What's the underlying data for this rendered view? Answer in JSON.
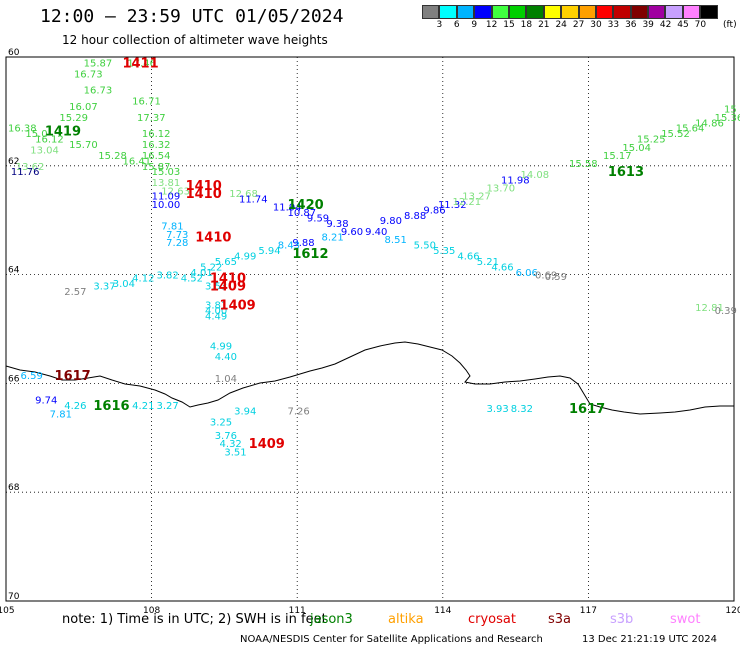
{
  "header": {
    "title": "12:00 — 23:59 UTC 01/05/2024",
    "subtitle": "12 hour collection of altimeter wave heights"
  },
  "legend": {
    "unit": "(ft)",
    "labels": [
      "3",
      "6",
      "9",
      "12",
      "15",
      "18",
      "21",
      "24",
      "27",
      "30",
      "33",
      "36",
      "39",
      "42",
      "45",
      "70"
    ],
    "colors": [
      "#808080",
      "#00ffff",
      "#00b4ff",
      "#0000ff",
      "#40ff40",
      "#00d000",
      "#008000",
      "#ffff00",
      "#ffd000",
      "#ffa000",
      "#ff0000",
      "#c00000",
      "#800000",
      "#a000a0",
      "#c8a0ff",
      "#ff80ff",
      "#000000"
    ]
  },
  "map": {
    "lat_labels": [
      "60",
      "62",
      "64",
      "66",
      "68",
      "70"
    ],
    "lon_labels": [
      "105",
      "108",
      "111",
      "114",
      "117",
      "120"
    ],
    "observations": [
      {
        "t": "15.87",
        "lon": 106.6,
        "lat": 60.1,
        "c": "#40d040"
      },
      {
        "t": "16.73",
        "lon": 106.4,
        "lat": 60.3,
        "c": "#40d040"
      },
      {
        "t": "16.73",
        "lon": 106.6,
        "lat": 60.6,
        "c": "#40d040"
      },
      {
        "t": "16.07",
        "lon": 106.3,
        "lat": 60.9,
        "c": "#40d040"
      },
      {
        "t": "15.29",
        "lon": 106.1,
        "lat": 61.1,
        "c": "#40d040"
      },
      {
        "t": "16.38",
        "lon": 105.0,
        "lat": 61.3,
        "c": "#40d040"
      },
      {
        "t": "15.0",
        "lon": 105.4,
        "lat": 61.4,
        "c": "#40d040"
      },
      {
        "t": "16.12",
        "lon": 105.6,
        "lat": 61.5,
        "c": "#40d040"
      },
      {
        "t": "15.70",
        "lon": 106.3,
        "lat": 61.6,
        "c": "#40d040"
      },
      {
        "t": "13.04",
        "lon": 105.5,
        "lat": 61.7,
        "c": "#80e080"
      },
      {
        "t": "13.62",
        "lon": 105.2,
        "lat": 62.0,
        "c": "#80e080"
      },
      {
        "t": "15.28",
        "lon": 106.9,
        "lat": 61.8,
        "c": "#40d040"
      },
      {
        "t": "16.41",
        "lon": 107.4,
        "lat": 61.9,
        "c": "#40d040"
      },
      {
        "t": "17.46",
        "lon": 107.5,
        "lat": 60.1,
        "c": "#40d040"
      },
      {
        "t": "16.71",
        "lon": 107.6,
        "lat": 60.8,
        "c": "#40d040"
      },
      {
        "t": "17.37",
        "lon": 107.7,
        "lat": 61.1,
        "c": "#40d040"
      },
      {
        "t": "16.12",
        "lon": 107.8,
        "lat": 61.4,
        "c": "#40d040"
      },
      {
        "t": "16.32",
        "lon": 107.8,
        "lat": 61.6,
        "c": "#40d040"
      },
      {
        "t": "16.54",
        "lon": 107.8,
        "lat": 61.8,
        "c": "#40d040"
      },
      {
        "t": "15.87",
        "lon": 107.8,
        "lat": 62.0,
        "c": "#40d040"
      },
      {
        "t": "15.03",
        "lon": 108.0,
        "lat": 62.1,
        "c": "#40d040"
      },
      {
        "t": "13.81",
        "lon": 108.0,
        "lat": 62.3,
        "c": "#80e080"
      },
      {
        "t": "12.63",
        "lon": 108.2,
        "lat": 62.45,
        "c": "#80e080"
      },
      {
        "t": "12.68",
        "lon": 109.6,
        "lat": 62.5,
        "c": "#80e080"
      },
      {
        "t": "11.76",
        "lon": 105.1,
        "lat": 62.1,
        "c": "#000080"
      },
      {
        "t": "11.09",
        "lon": 108.0,
        "lat": 62.55,
        "c": "#0000ff"
      },
      {
        "t": "10.00",
        "lon": 108.0,
        "lat": 62.7,
        "c": "#0000ff"
      },
      {
        "t": "11.74",
        "lon": 109.8,
        "lat": 62.6,
        "c": "#0000ff"
      },
      {
        "t": "11.94",
        "lon": 110.5,
        "lat": 62.75,
        "c": "#0000ff"
      },
      {
        "t": "10.87",
        "lon": 110.8,
        "lat": 62.85,
        "c": "#0000ff"
      },
      {
        "t": "9.59",
        "lon": 111.2,
        "lat": 62.95,
        "c": "#0000ff"
      },
      {
        "t": "9.38",
        "lon": 111.6,
        "lat": 63.05,
        "c": "#0000ff"
      },
      {
        "t": "9.60",
        "lon": 111.9,
        "lat": 63.2,
        "c": "#0000ff"
      },
      {
        "t": "9.40",
        "lon": 112.4,
        "lat": 63.2,
        "c": "#0000ff"
      },
      {
        "t": "9.80",
        "lon": 112.7,
        "lat": 63.0,
        "c": "#0000ff"
      },
      {
        "t": "8.88",
        "lon": 113.2,
        "lat": 62.9,
        "c": "#0000ff"
      },
      {
        "t": "9.86",
        "lon": 113.6,
        "lat": 62.8,
        "c": "#0000ff"
      },
      {
        "t": "11.32",
        "lon": 113.9,
        "lat": 62.7,
        "c": "#0000ff"
      },
      {
        "t": "11.98",
        "lon": 115.2,
        "lat": 62.25,
        "c": "#0000ff"
      },
      {
        "t": "9.88",
        "lon": 110.9,
        "lat": 63.4,
        "c": "#0000ff"
      },
      {
        "t": "8.21",
        "lon": 111.5,
        "lat": 63.3,
        "c": "#00b4ff"
      },
      {
        "t": "8.51",
        "lon": 112.8,
        "lat": 63.35,
        "c": "#00b4ff"
      },
      {
        "t": "7.81",
        "lon": 108.2,
        "lat": 63.1,
        "c": "#00b4ff"
      },
      {
        "t": "7.73",
        "lon": 108.3,
        "lat": 63.25,
        "c": "#00b4ff"
      },
      {
        "t": "7.28",
        "lon": 108.3,
        "lat": 63.4,
        "c": "#00b4ff"
      },
      {
        "t": "8.43",
        "lon": 110.6,
        "lat": 63.45,
        "c": "#00b4ff"
      },
      {
        "t": "5.94",
        "lon": 110.2,
        "lat": 63.55,
        "c": "#00d0e0"
      },
      {
        "t": "4.99",
        "lon": 109.7,
        "lat": 63.65,
        "c": "#00d0e0"
      },
      {
        "t": "5.65",
        "lon": 109.3,
        "lat": 63.75,
        "c": "#00d0e0"
      },
      {
        "t": "5.22",
        "lon": 109.0,
        "lat": 63.85,
        "c": "#00d0e0"
      },
      {
        "t": "4.01",
        "lon": 108.8,
        "lat": 63.95,
        "c": "#00d0e0"
      },
      {
        "t": "3.82",
        "lon": 108.1,
        "lat": 64.0,
        "c": "#00d0e0"
      },
      {
        "t": "4.52",
        "lon": 108.6,
        "lat": 64.05,
        "c": "#00d0e0"
      },
      {
        "t": "4.12",
        "lon": 107.6,
        "lat": 64.05,
        "c": "#00d0e0"
      },
      {
        "t": "3.04",
        "lon": 107.2,
        "lat": 64.15,
        "c": "#00d0e0"
      },
      {
        "t": "3.37",
        "lon": 106.8,
        "lat": 64.2,
        "c": "#00d0e0"
      },
      {
        "t": "3.53",
        "lon": 109.1,
        "lat": 64.2,
        "c": "#00d0e0"
      },
      {
        "t": "3.81",
        "lon": 109.1,
        "lat": 64.55,
        "c": "#00d0e0"
      },
      {
        "t": "4.00",
        "lon": 109.1,
        "lat": 64.65,
        "c": "#00d0e0"
      },
      {
        "t": "4.49",
        "lon": 109.1,
        "lat": 64.75,
        "c": "#00d0e0"
      },
      {
        "t": "4.99",
        "lon": 109.2,
        "lat": 65.3,
        "c": "#00d0e0"
      },
      {
        "t": "4.40",
        "lon": 109.3,
        "lat": 65.5,
        "c": "#00d0e0"
      },
      {
        "t": "5.50",
        "lon": 113.4,
        "lat": 63.45,
        "c": "#00d0e0"
      },
      {
        "t": "5.35",
        "lon": 113.8,
        "lat": 63.55,
        "c": "#00d0e0"
      },
      {
        "t": "4.66",
        "lon": 114.3,
        "lat": 63.65,
        "c": "#00d0e0"
      },
      {
        "t": "5.21",
        "lon": 114.7,
        "lat": 63.75,
        "c": "#00d0e0"
      },
      {
        "t": "4.66",
        "lon": 115.0,
        "lat": 63.85,
        "c": "#00d0e0"
      },
      {
        "t": "6.06",
        "lon": 115.5,
        "lat": 63.95,
        "c": "#00b4ff"
      },
      {
        "t": "0.69",
        "lon": 115.9,
        "lat": 64.0,
        "c": "#808080"
      },
      {
        "t": "0.59",
        "lon": 116.1,
        "lat": 64.03,
        "c": "#808080"
      },
      {
        "t": "2.57",
        "lon": 106.2,
        "lat": 64.3,
        "c": "#808080"
      },
      {
        "t": "13.27",
        "lon": 114.4,
        "lat": 62.55,
        "c": "#80e080"
      },
      {
        "t": "12.21",
        "lon": 114.2,
        "lat": 62.65,
        "c": "#80e080"
      },
      {
        "t": "13.70",
        "lon": 114.9,
        "lat": 62.4,
        "c": "#80e080"
      },
      {
        "t": "14.08",
        "lon": 115.6,
        "lat": 62.15,
        "c": "#80e080"
      },
      {
        "t": "15.58",
        "lon": 116.6,
        "lat": 61.95,
        "c": "#40d040"
      },
      {
        "t": "15.17",
        "lon": 117.3,
        "lat": 61.8,
        "c": "#40d040"
      },
      {
        "t": "15.04",
        "lon": 117.7,
        "lat": 61.65,
        "c": "#40d040"
      },
      {
        "t": "15.25",
        "lon": 118.0,
        "lat": 61.5,
        "c": "#40d040"
      },
      {
        "t": "15.52",
        "lon": 118.5,
        "lat": 61.4,
        "c": "#40d040"
      },
      {
        "t": "15.64",
        "lon": 118.8,
        "lat": 61.3,
        "c": "#40d040"
      },
      {
        "t": "14.86",
        "lon": 119.2,
        "lat": 61.2,
        "c": "#40d040"
      },
      {
        "t": "15.36",
        "lon": 119.6,
        "lat": 61.1,
        "c": "#40d040"
      },
      {
        "t": "15",
        "lon": 119.9,
        "lat": 60.95,
        "c": "#40d040"
      },
      {
        "t": "12.81",
        "lon": 119.2,
        "lat": 64.6,
        "c": "#80e080"
      },
      {
        "t": "0.39",
        "lon": 119.6,
        "lat": 64.65,
        "c": "#808080"
      },
      {
        "t": "1.04",
        "lon": 109.3,
        "lat": 65.9,
        "c": "#808080"
      },
      {
        "t": "6.59",
        "lon": 105.3,
        "lat": 65.85,
        "c": "#00b4ff"
      },
      {
        "t": "9.74",
        "lon": 105.6,
        "lat": 66.3,
        "c": "#0000ff"
      },
      {
        "t": "7.81",
        "lon": 105.9,
        "lat": 66.55,
        "c": "#00b4ff"
      },
      {
        "t": "4.26",
        "lon": 106.2,
        "lat": 66.4,
        "c": "#00d0e0"
      },
      {
        "t": "4.21",
        "lon": 107.6,
        "lat": 66.4,
        "c": "#00d0e0"
      },
      {
        "t": "3.27",
        "lon": 108.1,
        "lat": 66.4,
        "c": "#00d0e0"
      },
      {
        "t": "3.94",
        "lon": 109.7,
        "lat": 66.5,
        "c": "#00d0e0"
      },
      {
        "t": "3.25",
        "lon": 109.2,
        "lat": 66.7,
        "c": "#00d0e0"
      },
      {
        "t": "3.76",
        "lon": 109.3,
        "lat": 66.95,
        "c": "#00d0e0"
      },
      {
        "t": "4.32",
        "lon": 109.4,
        "lat": 67.1,
        "c": "#00d0e0"
      },
      {
        "t": "3.51",
        "lon": 109.5,
        "lat": 67.25,
        "c": "#00d0e0"
      },
      {
        "t": "7.26",
        "lon": 110.8,
        "lat": 66.5,
        "c": "#808080"
      },
      {
        "t": "3.93",
        "lon": 114.9,
        "lat": 66.45,
        "c": "#00d0e0"
      },
      {
        "t": "8.32",
        "lon": 115.4,
        "lat": 66.45,
        "c": "#00d0e0"
      }
    ],
    "passes": [
      {
        "t": "1411",
        "lon": 107.4,
        "lat": 60.1,
        "c": "#e00000"
      },
      {
        "t": "1419",
        "lon": 105.8,
        "lat": 61.35,
        "c": "#008000"
      },
      {
        "t": "1410",
        "lon": 108.7,
        "lat": 62.35,
        "c": "#e00000"
      },
      {
        "t": "1410",
        "lon": 108.7,
        "lat": 62.5,
        "c": "#e00000"
      },
      {
        "t": "1420",
        "lon": 110.8,
        "lat": 62.7,
        "c": "#008000"
      },
      {
        "t": "1410",
        "lon": 108.9,
        "lat": 63.3,
        "c": "#e00000"
      },
      {
        "t": "1612",
        "lon": 110.9,
        "lat": 63.6,
        "c": "#008000"
      },
      {
        "t": "1410",
        "lon": 109.2,
        "lat": 64.05,
        "c": "#e00000"
      },
      {
        "t": "1409",
        "lon": 109.2,
        "lat": 64.2,
        "c": "#e00000"
      },
      {
        "t": "1409",
        "lon": 109.4,
        "lat": 64.55,
        "c": "#e00000"
      },
      {
        "t": "1613",
        "lon": 117.4,
        "lat": 62.1,
        "c": "#008000"
      },
      {
        "t": "1617",
        "lon": 106.0,
        "lat": 65.85,
        "c": "#800000"
      },
      {
        "t": "1616",
        "lon": 106.8,
        "lat": 66.4,
        "c": "#008000"
      },
      {
        "t": "1617",
        "lon": 116.6,
        "lat": 66.45,
        "c": "#008000"
      },
      {
        "t": "1409",
        "lon": 110.0,
        "lat": 67.1,
        "c": "#e00000"
      }
    ]
  },
  "footer": {
    "note": "note:  1) Time is in UTC; 2) SWH is in feet",
    "satellites": [
      {
        "name": "jason3",
        "color": "#008000"
      },
      {
        "name": "altika",
        "color": "#ffa000"
      },
      {
        "name": "cryosat",
        "color": "#e00000"
      },
      {
        "name": "s3a",
        "color": "#800000"
      },
      {
        "name": "s3b",
        "color": "#c8a0ff"
      },
      {
        "name": "swot",
        "color": "#ff80ff"
      }
    ],
    "credit": "NOAA/NESDIS Center for Satellite Applications and Research",
    "generated": "13 Dec 21:21:19 UTC 2024"
  }
}
